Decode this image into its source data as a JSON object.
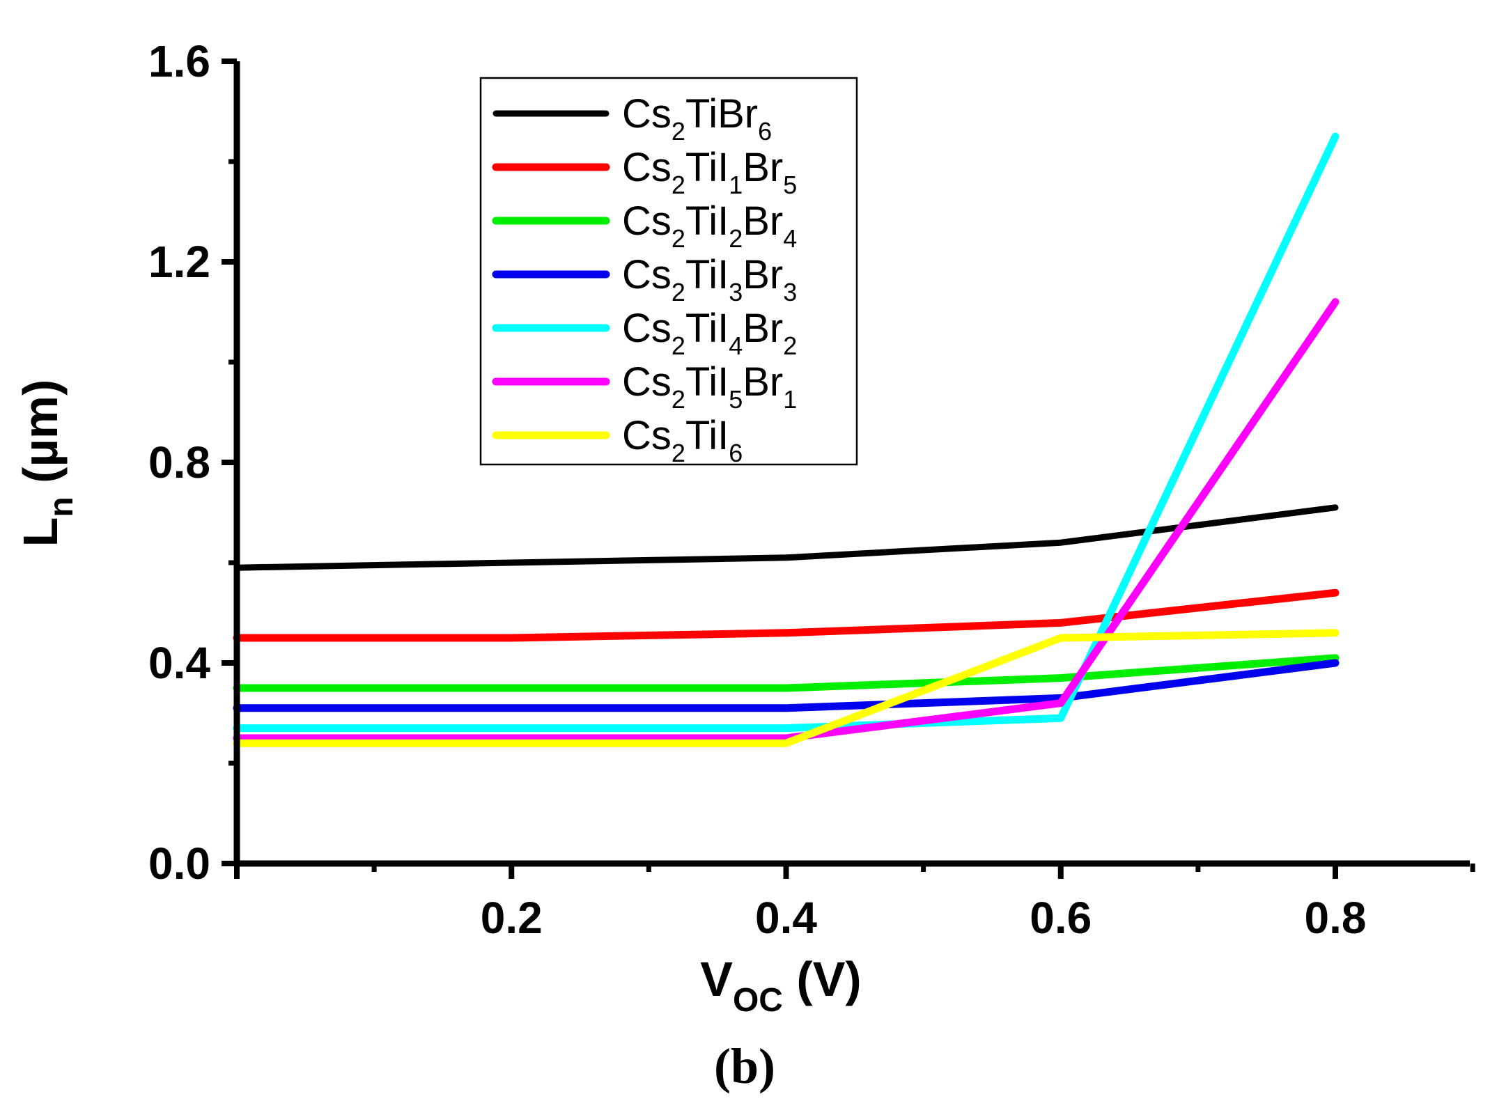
{
  "chart_data": {
    "type": "line",
    "title": "",
    "panel_label": "(b)",
    "xlabel": {
      "main": "V",
      "sub": "OC",
      "unit": " (V)"
    },
    "ylabel": {
      "main": "L",
      "sub": "n",
      "unit": " (µm)"
    },
    "xlim": [
      0.0,
      0.9
    ],
    "ylim": [
      0.0,
      1.6
    ],
    "xticks": [
      0.2,
      0.4,
      0.6,
      0.8
    ],
    "xtick_labels": [
      "0.2",
      "0.4",
      "0.6",
      "0.8"
    ],
    "yticks": [
      0.0,
      0.4,
      0.8,
      1.2,
      1.6
    ],
    "ytick_labels": [
      "0.0",
      "0.4",
      "0.8",
      "1.2",
      "1.6"
    ],
    "grid": false,
    "legend_position": "top-center",
    "x": [
      0.0,
      0.2,
      0.4,
      0.6,
      0.8
    ],
    "series": [
      {
        "name": "Cs2TiBr6",
        "color": "#000000",
        "label_parts": [
          [
            "Cs",
            ""
          ],
          [
            "2",
            "sub"
          ],
          [
            "TiBr",
            ""
          ],
          [
            "6",
            "sub"
          ]
        ],
        "values": [
          0.59,
          0.6,
          0.61,
          0.64,
          0.71
        ]
      },
      {
        "name": "Cs2TiI1Br5",
        "color": "#ff0000",
        "label_parts": [
          [
            "Cs",
            ""
          ],
          [
            "2",
            "sub"
          ],
          [
            "TiI",
            ""
          ],
          [
            "1",
            "sub"
          ],
          [
            "Br",
            ""
          ],
          [
            "5",
            "sub"
          ]
        ],
        "values": [
          0.45,
          0.45,
          0.46,
          0.48,
          0.54
        ]
      },
      {
        "name": "Cs2TiI2Br4",
        "color": "#00ee00",
        "label_parts": [
          [
            "Cs",
            ""
          ],
          [
            "2",
            "sub"
          ],
          [
            "TiI",
            ""
          ],
          [
            "2",
            "sub"
          ],
          [
            "Br",
            ""
          ],
          [
            "4",
            "sub"
          ]
        ],
        "values": [
          0.35,
          0.35,
          0.35,
          0.37,
          0.41
        ]
      },
      {
        "name": "Cs2TiI3Br3",
        "color": "#0000ee",
        "label_parts": [
          [
            "Cs",
            ""
          ],
          [
            "2",
            "sub"
          ],
          [
            "TiI",
            ""
          ],
          [
            "3",
            "sub"
          ],
          [
            "Br",
            ""
          ],
          [
            "3",
            "sub"
          ]
        ],
        "values": [
          0.31,
          0.31,
          0.31,
          0.33,
          0.4
        ]
      },
      {
        "name": "Cs2TiI4Br2",
        "color": "#00ffff",
        "label_parts": [
          [
            "Cs",
            ""
          ],
          [
            "2",
            "sub"
          ],
          [
            "TiI",
            ""
          ],
          [
            "4",
            "sub"
          ],
          [
            "Br",
            ""
          ],
          [
            "2",
            "sub"
          ]
        ],
        "values": [
          0.27,
          0.27,
          0.27,
          0.29,
          1.45
        ]
      },
      {
        "name": "Cs2TiI5Br1",
        "color": "#ff00ff",
        "label_parts": [
          [
            "Cs",
            ""
          ],
          [
            "2",
            "sub"
          ],
          [
            "TiI",
            ""
          ],
          [
            "5",
            "sub"
          ],
          [
            "Br",
            ""
          ],
          [
            "1",
            "sub"
          ]
        ],
        "values": [
          0.25,
          0.25,
          0.25,
          0.32,
          1.12
        ]
      },
      {
        "name": "Cs2TiI6",
        "color": "#ffff00",
        "label_parts": [
          [
            "Cs",
            ""
          ],
          [
            "2",
            "sub"
          ],
          [
            "TiI",
            ""
          ],
          [
            "6",
            "sub"
          ]
        ],
        "values": [
          0.24,
          0.24,
          0.24,
          0.45,
          0.46
        ]
      }
    ]
  }
}
